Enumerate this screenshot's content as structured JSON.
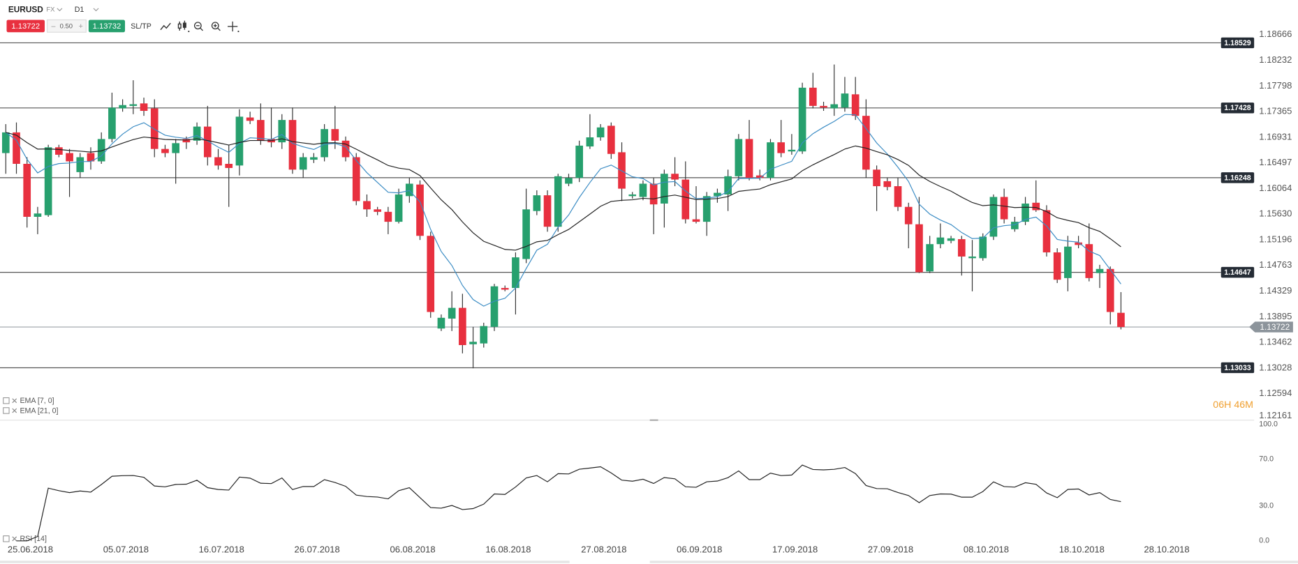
{
  "toolbar": {
    "symbol": "EURUSD",
    "market": "FX",
    "timeframe": "D1",
    "bid": 1.13722,
    "spread": "0.50",
    "ask": 1.13732,
    "sltp": "SL/TP"
  },
  "countdown": "06H 46M",
  "chart_data": [
    {
      "type": "candlestick",
      "x": [
        "22.06.2018",
        "24.06.2018",
        "25.06.2018",
        "26.06.2018",
        "27.06.2018",
        "28.06.2018",
        "29.06.2018",
        "01.07.2018",
        "02.07.2018",
        "03.07.2018",
        "04.07.2018",
        "05.07.2018",
        "06.07.2018",
        "08.07.2018",
        "09.07.2018",
        "10.07.2018",
        "11.07.2018",
        "12.07.2018",
        "13.07.2018",
        "15.07.2018",
        "16.07.2018",
        "17.07.2018",
        "18.07.2018",
        "19.07.2018",
        "20.07.2018",
        "22.07.2018",
        "23.07.2018",
        "24.07.2018",
        "25.07.2018",
        "26.07.2018",
        "27.07.2018",
        "29.07.2018",
        "30.07.2018",
        "31.07.2018",
        "01.08.2018",
        "02.08.2018",
        "03.08.2018",
        "05.08.2018",
        "06.08.2018",
        "07.08.2018",
        "08.08.2018",
        "09.08.2018",
        "10.08.2018",
        "12.08.2018",
        "13.08.2018",
        "14.08.2018",
        "15.08.2018",
        "16.08.2018",
        "17.08.2018",
        "19.08.2018",
        "20.08.2018",
        "21.08.2018",
        "22.08.2018",
        "23.08.2018",
        "24.08.2018",
        "26.08.2018",
        "27.08.2018",
        "28.08.2018",
        "29.08.2018",
        "30.08.2018",
        "31.08.2018",
        "02.09.2018",
        "03.09.2018",
        "04.09.2018",
        "05.09.2018",
        "06.09.2018",
        "07.09.2018",
        "09.09.2018",
        "10.09.2018",
        "11.09.2018",
        "12.09.2018",
        "13.09.2018",
        "14.09.2018",
        "16.09.2018",
        "17.09.2018",
        "18.09.2018",
        "19.09.2018",
        "20.09.2018",
        "21.09.2018",
        "23.09.2018",
        "24.09.2018",
        "25.09.2018",
        "26.09.2018",
        "27.09.2018",
        "28.09.2018",
        "30.09.2018",
        "01.10.2018",
        "02.10.2018",
        "03.10.2018",
        "04.10.2018",
        "05.10.2018",
        "07.10.2018",
        "08.10.2018",
        "09.10.2018",
        "10.10.2018",
        "11.10.2018",
        "12.10.2018",
        "14.10.2018",
        "15.10.2018",
        "16.10.2018",
        "17.10.2018",
        "18.10.2018",
        "19.10.2018",
        "21.10.2018",
        "22.10.2018",
        "23.10.2018"
      ],
      "open": [
        1.16664,
        1.17014,
        1.16482,
        1.15586,
        1.15614,
        1.16762,
        1.16664,
        1.16342,
        1.16664,
        1.16524,
        1.16902,
        1.1742,
        1.17462,
        1.17504,
        1.1742,
        1.16734,
        1.16664,
        1.16902,
        1.16874,
        1.17112,
        1.16594,
        1.16482,
        1.16454,
        1.17266,
        1.17224,
        1.16902,
        1.16846,
        1.17224,
        1.16384,
        1.16552,
        1.16594,
        1.1707,
        1.16874,
        1.16594,
        1.15852,
        1.15712,
        1.1567,
        1.15502,
        1.15936,
        1.16132,
        1.15264,
        1.13696,
        1.13864,
        1.14046,
        1.1343,
        1.13444,
        1.13724,
        1.14382,
        1.14382,
        1.14872,
        1.15684,
        1.1595,
        1.15418,
        1.16146,
        1.16244,
        1.16776,
        1.1693,
        1.17126,
        1.16678,
        1.15936,
        1.15922,
        1.16146,
        1.1581,
        1.16314,
        1.16216,
        1.15544,
        1.15502,
        1.15936,
        1.15964,
        1.16272,
        1.16902,
        1.16286,
        1.16244,
        1.16846,
        1.16692,
        1.16692,
        1.1777,
        1.17462,
        1.1742,
        1.17434,
        1.17658,
        1.17294,
        1.16384,
        1.16188,
        1.16104,
        1.15754,
        1.1546,
        1.14662,
        1.15124,
        1.1518,
        1.15208,
        1.14886,
        1.14886,
        1.1525,
        1.15922,
        1.15376,
        1.15502,
        1.15824,
        1.15698,
        1.14984,
        1.1455,
        1.15152,
        1.15124,
        1.14634,
        1.14704,
        1.13962
      ],
      "high": [
        1.17154,
        1.17182,
        1.16594,
        1.15754,
        1.16804,
        1.16804,
        1.16734,
        1.16664,
        1.16762,
        1.17014,
        1.17686,
        1.17574,
        1.17896,
        1.17602,
        1.17574,
        1.16804,
        1.16902,
        1.16944,
        1.17182,
        1.17462,
        1.16734,
        1.16804,
        1.17406,
        1.17364,
        1.17504,
        1.17434,
        1.17322,
        1.17434,
        1.16664,
        1.16664,
        1.17154,
        1.17462,
        1.16944,
        1.16664,
        1.15964,
        1.15754,
        1.15754,
        1.16062,
        1.16244,
        1.16202,
        1.15334,
        1.13934,
        1.14326,
        1.14284,
        1.13724,
        1.13794,
        1.14452,
        1.14424,
        1.14984,
        1.16062,
        1.16034,
        1.16034,
        1.16314,
        1.16314,
        1.16874,
        1.17322,
        1.17154,
        1.17182,
        1.16846,
        1.16006,
        1.16202,
        1.16244,
        1.16384,
        1.16594,
        1.16524,
        1.16104,
        1.16006,
        1.16062,
        1.16384,
        1.16986,
        1.17224,
        1.16384,
        1.16902,
        1.17224,
        1.16986,
        1.17854,
        1.18022,
        1.17532,
        1.18162,
        1.17952,
        1.17952,
        1.17574,
        1.16454,
        1.16244,
        1.16244,
        1.15824,
        1.15922,
        1.15264,
        1.15474,
        1.15264,
        1.15264,
        1.15194,
        1.15306,
        1.15964,
        1.16062,
        1.15586,
        1.15922,
        1.16202,
        1.15782,
        1.15054,
        1.15264,
        1.15264,
        1.15474,
        1.14774,
        1.14746,
        1.14312
      ],
      "low": [
        1.16314,
        1.16314,
        1.15404,
        1.15292,
        1.15586,
        1.16594,
        1.15922,
        1.16244,
        1.16384,
        1.16482,
        1.16846,
        1.17364,
        1.17322,
        1.17294,
        1.16594,
        1.16594,
        1.16146,
        1.16734,
        1.16804,
        1.16454,
        1.16384,
        1.15754,
        1.16286,
        1.17154,
        1.16804,
        1.16762,
        1.16734,
        1.16314,
        1.16244,
        1.16496,
        1.16524,
        1.16734,
        1.16524,
        1.15782,
        1.15586,
        1.15614,
        1.15292,
        1.15474,
        1.15824,
        1.15194,
        1.13878,
        1.13654,
        1.13654,
        1.13276,
        1.13024,
        1.13374,
        1.13654,
        1.14326,
        1.13934,
        1.14802,
        1.15614,
        1.15334,
        1.15334,
        1.16104,
        1.16174,
        1.16734,
        1.16874,
        1.16566,
        1.15852,
        1.15894,
        1.15866,
        1.15292,
        1.15404,
        1.16104,
        1.15474,
        1.15474,
        1.15264,
        1.15824,
        1.15684,
        1.16202,
        1.16202,
        1.16202,
        1.16202,
        1.16594,
        1.16636,
        1.1665,
        1.1742,
        1.17378,
        1.17294,
        1.17364,
        1.17224,
        1.16244,
        1.15684,
        1.16034,
        1.15684,
        1.15054,
        1.14634,
        1.14634,
        1.15054,
        1.15138,
        1.14592,
        1.14326,
        1.14844,
        1.15194,
        1.15474,
        1.15334,
        1.15446,
        1.1567,
        1.14914,
        1.14466,
        1.14326,
        1.15054,
        1.14494,
        1.14382,
        1.13766,
        1.13682
      ],
      "close": [
        1.17014,
        1.16482,
        1.15586,
        1.15642,
        1.16762,
        1.16636,
        1.16524,
        1.16594,
        1.16524,
        1.16902,
        1.17434,
        1.17476,
        1.1749,
        1.17378,
        1.16734,
        1.16664,
        1.16832,
        1.16846,
        1.17112,
        1.16594,
        1.16454,
        1.16412,
        1.1728,
        1.1721,
        1.16874,
        1.16846,
        1.17224,
        1.16384,
        1.16594,
        1.16594,
        1.1707,
        1.16874,
        1.16594,
        1.15852,
        1.15712,
        1.1567,
        1.15502,
        1.15964,
        1.16146,
        1.15264,
        1.13976,
        1.13878,
        1.14046,
        1.13416,
        1.13472,
        1.13738,
        1.1441,
        1.14354,
        1.149,
        1.15712,
        1.1595,
        1.15418,
        1.16272,
        1.16244,
        1.1679,
        1.1693,
        1.17098,
        1.1665,
        1.16062,
        1.15964,
        1.16146,
        1.15796,
        1.16314,
        1.16216,
        1.15544,
        1.15502,
        1.15936,
        1.15992,
        1.16272,
        1.16902,
        1.16244,
        1.16244,
        1.16846,
        1.16664,
        1.1672,
        1.1777,
        1.17462,
        1.17434,
        1.1749,
        1.17672,
        1.17294,
        1.16384,
        1.16104,
        1.1609,
        1.15754,
        1.1546,
        1.14648,
        1.15124,
        1.15236,
        1.15222,
        1.14914,
        1.14914,
        1.1525,
        1.15922,
        1.15544,
        1.15502,
        1.1581,
        1.15698,
        1.14984,
        1.14522,
        1.15082,
        1.1511,
        1.1455,
        1.14704,
        1.13976,
        1.13722
      ],
      "up_color": "#27a06e",
      "down_color": "#e8303f",
      "xlim": [
        "22.06.2018",
        "02.11.2018"
      ],
      "xticks": [
        "25.06.2018",
        "05.07.2018",
        "16.07.2018",
        "26.07.2018",
        "06.08.2018",
        "16.08.2018",
        "27.08.2018",
        "06.09.2018",
        "17.09.2018",
        "27.09.2018",
        "08.10.2018",
        "18.10.2018",
        "28.10.2018"
      ],
      "ylim": [
        1.12161,
        1.18666
      ],
      "yticks": [
        1.18666,
        1.18232,
        1.17798,
        1.17365,
        1.16931,
        1.16497,
        1.16064,
        {
          "value": 1.1563,
          "label": "1.15630"
        },
        1.15196,
        1.14763,
        1.14329,
        1.13895,
        1.13462,
        1.13028,
        1.12594,
        1.12161
      ],
      "levels": [
        1.18529,
        1.17428,
        1.16248,
        1.14647,
        1.13033
      ],
      "last_price": 1.13722,
      "indicators": [
        {
          "name": "EMA [7, 0]",
          "kind": "ema",
          "period": 7,
          "color": "#3b8cc4"
        },
        {
          "name": "EMA [21, 0]",
          "kind": "ema",
          "period": 21,
          "color": "#222222"
        }
      ]
    },
    {
      "type": "rsi",
      "name": "RSI [14]",
      "period": 14,
      "color": "#222222",
      "ylim": [
        0,
        100
      ],
      "yticks": [
        {
          "value": 100,
          "label": "100.0"
        },
        {
          "value": 70,
          "label": "70.0"
        },
        {
          "value": 30,
          "label": "30.0"
        },
        {
          "value": 0,
          "label": "0.0"
        }
      ]
    }
  ]
}
